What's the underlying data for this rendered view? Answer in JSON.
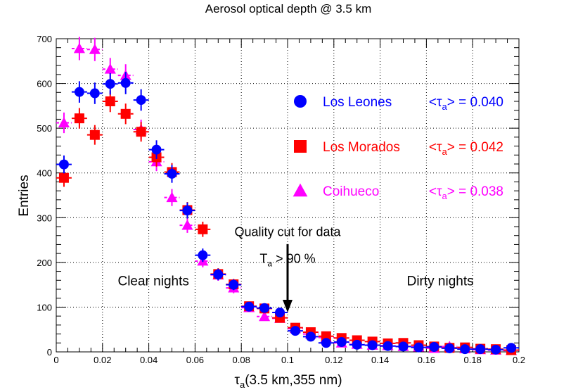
{
  "chart_data": {
    "type": "scatter",
    "title": "Aerosol optical depth @ 3.5 km",
    "xlabel": {
      "main": "τ",
      "sub": "a",
      "rest": "(3.5 km,355 nm)"
    },
    "ylabel": "Entries",
    "xlim": [
      0,
      0.2
    ],
    "ylim": [
      0,
      700
    ],
    "xticks": [
      0,
      0.02,
      0.04,
      0.06,
      0.08,
      0.1,
      0.12,
      0.14,
      0.16,
      0.18,
      0.2
    ],
    "xtick_labels": [
      "0",
      "0.02",
      "0.04",
      "0.06",
      "0.08",
      "0.1",
      "0.12",
      "0.14",
      "0.16",
      "0.18",
      "0.2"
    ],
    "yticks": [
      0,
      100,
      200,
      300,
      400,
      500,
      600,
      700
    ],
    "ytick_labels": [
      "0",
      "100",
      "200",
      "300",
      "400",
      "500",
      "600",
      "700"
    ],
    "grid": true,
    "bin_halfwidth": 0.00333,
    "series": [
      {
        "name": "Los Leones",
        "mean_label": "<τ_a> = 0.040",
        "mean_prefix": "<τ",
        "mean_sub": "a",
        "mean_suffix": "> = 0.040",
        "color": "#0000ff",
        "marker": "circle",
        "x": [
          0.00333,
          0.01,
          0.01667,
          0.02333,
          0.03,
          0.03667,
          0.04333,
          0.05,
          0.05667,
          0.06333,
          0.07,
          0.07667,
          0.08333,
          0.09,
          0.09667,
          0.10333,
          0.11,
          0.11667,
          0.12333,
          0.13,
          0.13667,
          0.14333,
          0.15,
          0.15667,
          0.16333,
          0.17,
          0.17667,
          0.18333,
          0.19,
          0.19667
        ],
        "y": [
          419,
          581,
          578,
          599,
          601,
          563,
          452,
          398,
          316,
          216,
          173,
          150,
          101,
          98,
          88,
          47,
          34,
          20,
          22,
          16,
          15,
          13,
          12,
          10,
          11,
          8,
          6,
          6,
          5,
          9
        ],
        "yerr": [
          20,
          24,
          24,
          24,
          25,
          24,
          21,
          20,
          18,
          15,
          13,
          12,
          10,
          10,
          9,
          7,
          6,
          4,
          5,
          4,
          4,
          4,
          3,
          3,
          3,
          3,
          2,
          2,
          2,
          3
        ]
      },
      {
        "name": "Los Morados",
        "mean_label": "<τ_a> = 0.042",
        "mean_prefix": "<τ",
        "mean_sub": "a",
        "mean_suffix": "> = 0.042",
        "color": "#ff0000",
        "marker": "square",
        "x": [
          0.00333,
          0.01,
          0.01667,
          0.02333,
          0.03,
          0.03667,
          0.04333,
          0.05,
          0.05667,
          0.06333,
          0.07,
          0.07667,
          0.08333,
          0.09,
          0.09667,
          0.10333,
          0.11,
          0.11667,
          0.12333,
          0.13,
          0.13667,
          0.14333,
          0.15,
          0.15667,
          0.16333,
          0.17,
          0.17667,
          0.18333,
          0.19,
          0.19667
        ],
        "y": [
          389,
          522,
          485,
          560,
          532,
          492,
          435,
          402,
          317,
          274,
          174,
          151,
          102,
          97,
          76,
          54,
          44,
          35,
          31,
          26,
          23,
          19,
          20,
          15,
          12,
          9,
          10,
          7,
          6,
          4
        ],
        "yerr": [
          20,
          23,
          22,
          24,
          23,
          22,
          21,
          20,
          18,
          17,
          13,
          12,
          10,
          10,
          9,
          7,
          7,
          6,
          6,
          5,
          5,
          4,
          4,
          4,
          3,
          3,
          3,
          3,
          2,
          2
        ]
      },
      {
        "name": "Coihueco",
        "mean_label": "<τ_a> = 0.038",
        "mean_prefix": "<τ",
        "mean_sub": "a",
        "mean_suffix": "> = 0.038",
        "color": "#ff00ff",
        "marker": "triangle",
        "x": [
          0.00333,
          0.01,
          0.01667,
          0.02333,
          0.03,
          0.03667,
          0.04333,
          0.05,
          0.05667,
          0.06333,
          0.07,
          0.07667,
          0.08333,
          0.09,
          0.09667,
          0.10333,
          0.11,
          0.11667,
          0.12333,
          0.13,
          0.13667,
          0.14333,
          0.15,
          0.15667,
          0.16333,
          0.17,
          0.17667,
          0.18333,
          0.19,
          0.19667
        ],
        "y": [
          512,
          678,
          676,
          632,
          618,
          497,
          425,
          345,
          283,
          203,
          172,
          143,
          99,
          79,
          75,
          52,
          40,
          32,
          20,
          17,
          15,
          14,
          12,
          11,
          8,
          12,
          7,
          5,
          4,
          3
        ],
        "yerr": [
          23,
          26,
          26,
          25,
          25,
          22,
          21,
          19,
          17,
          14,
          13,
          12,
          10,
          9,
          9,
          7,
          6,
          6,
          4,
          4,
          4,
          4,
          3,
          3,
          3,
          3,
          3,
          2,
          2,
          2
        ]
      }
    ],
    "annotations": {
      "cut_title": "Quality cut for data",
      "cut_condition_prefix": "T",
      "cut_condition_sub": "a",
      "cut_condition_suffix": " > 90 %",
      "cut_x": 0.1,
      "arrow_from_y": 200,
      "arrow_to_y": 88,
      "clear_label": "Clear nights",
      "clear_at": [
        0.042,
        160
      ],
      "dirty_label": "Dirty nights",
      "dirty_at": [
        0.166,
        160
      ],
      "cut_title_at": [
        0.1,
        270
      ],
      "cut_cond_at": [
        0.1,
        210
      ]
    }
  }
}
